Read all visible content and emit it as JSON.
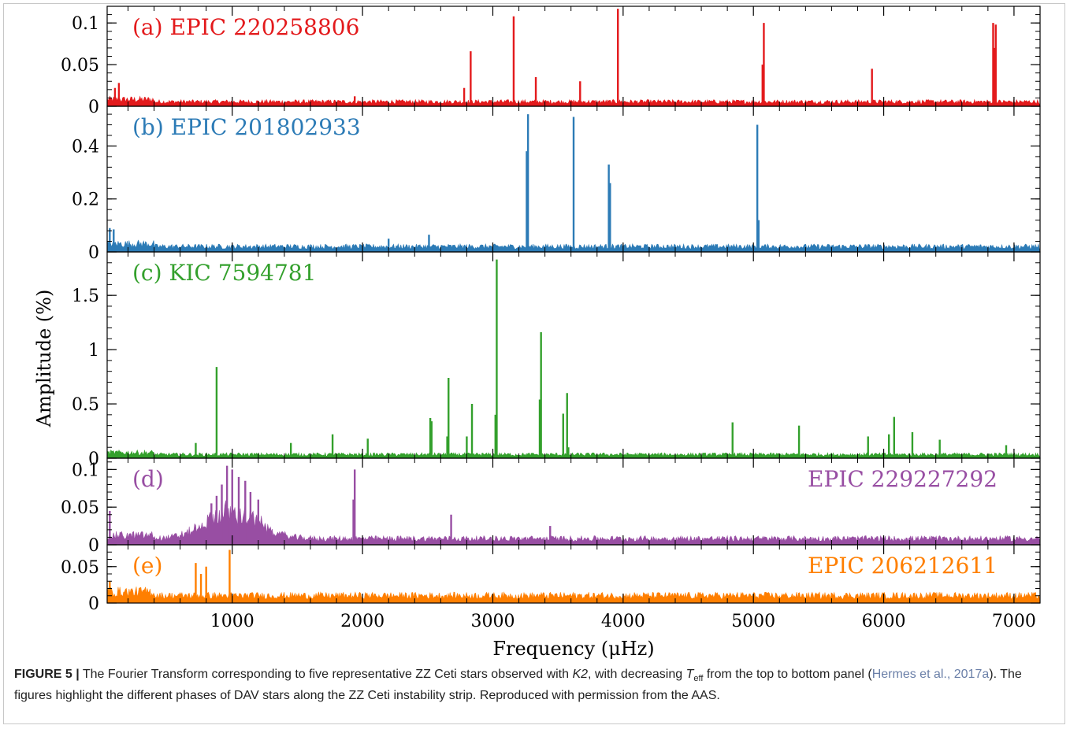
{
  "chart_data": {
    "type": "line",
    "xlabel": "Frequency (μHz)",
    "ylabel": "Amplitude (%)",
    "xlim": [
      40,
      7200
    ],
    "xticks": [
      1000,
      2000,
      3000,
      4000,
      5000,
      6000,
      7000
    ],
    "grid": false,
    "panels": [
      {
        "label": "(a) EPIC 220258806",
        "color": "#e31a1c",
        "label_side": "left",
        "ylim": [
          0,
          0.12
        ],
        "yticks": [
          0,
          0.05,
          0.1
        ],
        "noise": 0.008,
        "peaks": [
          [
            2780,
            0.022
          ],
          [
            2830,
            0.066
          ],
          [
            3160,
            0.108
          ],
          [
            3330,
            0.035
          ],
          [
            3670,
            0.03
          ],
          [
            3960,
            0.117
          ],
          [
            5080,
            0.1
          ],
          [
            5070,
            0.05
          ],
          [
            5910,
            0.045
          ],
          [
            6840,
            0.1
          ],
          [
            6860,
            0.098
          ],
          [
            6850,
            0.07
          ],
          [
            130,
            0.028
          ],
          [
            100,
            0.022
          ],
          [
            1940,
            0.012
          ]
        ]
      },
      {
        "label": "(b) EPIC 201802933",
        "color": "#2c7bb6",
        "label_side": "left",
        "ylim": [
          0,
          0.55
        ],
        "yticks": [
          0,
          0.2,
          0.4
        ],
        "noise": 0.03,
        "peaks": [
          [
            3270,
            0.52
          ],
          [
            3260,
            0.38
          ],
          [
            3620,
            0.51
          ],
          [
            3890,
            0.33
          ],
          [
            3900,
            0.26
          ],
          [
            5030,
            0.48
          ],
          [
            5040,
            0.12
          ],
          [
            60,
            0.09
          ],
          [
            90,
            0.085
          ],
          [
            2510,
            0.065
          ],
          [
            2200,
            0.05
          ]
        ]
      },
      {
        "label": "(c) KIC 7594781",
        "color": "#33a02c",
        "label_side": "left",
        "ylim": [
          0,
          1.9
        ],
        "yticks": [
          0,
          0.5,
          1,
          1.5
        ],
        "noise": 0.05,
        "peaks": [
          [
            880,
            0.84
          ],
          [
            2520,
            0.37
          ],
          [
            2530,
            0.34
          ],
          [
            2660,
            0.74
          ],
          [
            2650,
            0.2
          ],
          [
            2800,
            0.2
          ],
          [
            2840,
            0.5
          ],
          [
            3030,
            1.83
          ],
          [
            3020,
            0.4
          ],
          [
            3370,
            1.16
          ],
          [
            3360,
            0.54
          ],
          [
            3540,
            0.41
          ],
          [
            3570,
            0.6
          ],
          [
            3580,
            0.1
          ],
          [
            1770,
            0.22
          ],
          [
            2040,
            0.18
          ],
          [
            4840,
            0.33
          ],
          [
            5350,
            0.3
          ],
          [
            5880,
            0.2
          ],
          [
            6040,
            0.22
          ],
          [
            6080,
            0.38
          ],
          [
            6220,
            0.24
          ],
          [
            6430,
            0.17
          ],
          [
            6940,
            0.12
          ],
          [
            720,
            0.14
          ],
          [
            1450,
            0.14
          ]
        ]
      },
      {
        "label": "(d)",
        "label2": "EPIC 229227292",
        "color": "#984ea3",
        "label_side": "both",
        "ylim": [
          0,
          0.115
        ],
        "yticks": [
          0,
          0.05,
          0.1
        ],
        "noise": 0.012,
        "hump": {
          "center": 1000,
          "width": 280,
          "height": 0.035
        },
        "peaks": [
          [
            960,
            0.105
          ],
          [
            1000,
            0.1
          ],
          [
            1050,
            0.09
          ],
          [
            920,
            0.08
          ],
          [
            1100,
            0.085
          ],
          [
            1140,
            0.07
          ],
          [
            880,
            0.065
          ],
          [
            1200,
            0.06
          ],
          [
            840,
            0.055
          ],
          [
            1940,
            0.1
          ],
          [
            1930,
            0.06
          ],
          [
            2680,
            0.04
          ],
          [
            3440,
            0.025
          ],
          [
            60,
            0.045
          ]
        ]
      },
      {
        "label": "(e)",
        "label2": "EPIC 206212611",
        "color": "#ff7f00",
        "label_side": "both",
        "ylim": [
          0,
          0.08
        ],
        "yticks": [
          0,
          0.05
        ],
        "noise": 0.015,
        "peaks": [
          [
            980,
            0.073
          ],
          [
            720,
            0.055
          ],
          [
            800,
            0.05
          ],
          [
            760,
            0.04
          ],
          [
            60,
            0.03
          ]
        ]
      }
    ]
  },
  "caption": {
    "figure_label": "FIGURE 5 |",
    "text_before_k2": " The Fourier Transform corresponding to five representative ZZ Ceti stars observed with ",
    "k2": "K2",
    "text_before_teff": ", with decreasing ",
    "teff_T": "T",
    "teff_sub": "eff",
    "text_before_ref": " from the top to bottom panel (",
    "ref": "Hermes et al., 2017a",
    "text_after_ref": "). The figures highlight the different phases of DAV stars along the ZZ Ceti instability strip. Reproduced with permission from the AAS."
  }
}
